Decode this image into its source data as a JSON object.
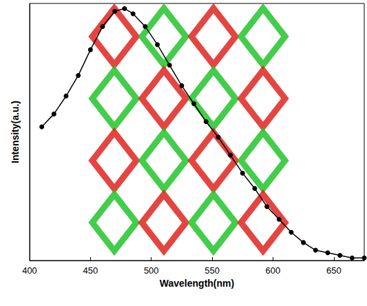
{
  "chart_data": {
    "type": "line",
    "xlabel": "Wavelength(nm)",
    "ylabel": "Intensity(a.u.)",
    "x": [
      410,
      420,
      430,
      440,
      450,
      460,
      470,
      478,
      485,
      495,
      505,
      515,
      525,
      535,
      545,
      555,
      565,
      575,
      585,
      595,
      605,
      615,
      625,
      635,
      645,
      655,
      665,
      675
    ],
    "values": [
      0.52,
      0.57,
      0.64,
      0.72,
      0.82,
      0.91,
      0.97,
      0.98,
      0.96,
      0.91,
      0.84,
      0.76,
      0.68,
      0.61,
      0.54,
      0.48,
      0.41,
      0.34,
      0.28,
      0.21,
      0.16,
      0.11,
      0.07,
      0.04,
      0.03,
      0.02,
      0.01,
      0.01
    ],
    "color": "#000000",
    "marker": "circle",
    "xlim": [
      400,
      675
    ],
    "xticks": [
      400,
      450,
      500,
      550,
      600,
      650
    ],
    "ylim": [
      0,
      1
    ],
    "yticks": [],
    "tick_labels": "x",
    "grid": false
  }
}
